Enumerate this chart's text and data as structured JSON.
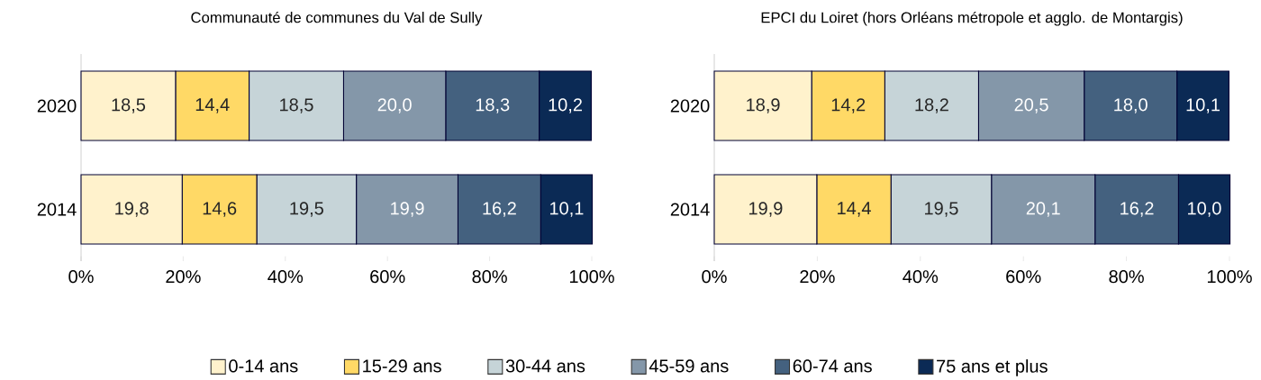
{
  "chart_data": [
    {
      "type": "bar",
      "orientation": "horizontal",
      "stacked": true,
      "title": "Communauté de communes du Val de Sully",
      "categories": [
        "2020",
        "2014"
      ],
      "xlim": [
        0,
        100
      ],
      "xticks": [
        {
          "value": 0,
          "label": "0%"
        },
        {
          "value": 20,
          "label": "20%"
        },
        {
          "value": 40,
          "label": "40%"
        },
        {
          "value": 60,
          "label": "60%"
        },
        {
          "value": 80,
          "label": "80%"
        },
        {
          "value": 100,
          "label": "100%"
        }
      ],
      "legend": "bottom",
      "series": [
        {
          "name": "0-14 ans",
          "color": "#fff2cc",
          "values": [
            18.5,
            19.8
          ],
          "value_labels": [
            "18,5",
            "19,8"
          ]
        },
        {
          "name": "15-29 ans",
          "color": "#ffd966",
          "values": [
            14.4,
            14.6
          ],
          "value_labels": [
            "14,4",
            "14,6"
          ]
        },
        {
          "name": "30-44 ans",
          "color": "#c6d4d8",
          "values": [
            18.5,
            19.5
          ],
          "value_labels": [
            "18,5",
            "19,5"
          ]
        },
        {
          "name": "45-59 ans",
          "color": "#8497a9",
          "values": [
            20.0,
            19.9
          ],
          "value_labels": [
            "20,0",
            "19,9"
          ]
        },
        {
          "name": "60-74 ans",
          "color": "#44617f",
          "values": [
            18.3,
            16.2
          ],
          "value_labels": [
            "18,3",
            "16,2"
          ]
        },
        {
          "name": "75 ans et plus",
          "color": "#0b2a55",
          "values": [
            10.2,
            10.1
          ],
          "value_labels": [
            "10,2",
            "10,1"
          ]
        }
      ]
    },
    {
      "type": "bar",
      "orientation": "horizontal",
      "stacked": true,
      "title": "EPCI du Loiret (hors Orléans métropole et agglo. de Montargis)",
      "categories": [
        "2020",
        "2014"
      ],
      "xlim": [
        0,
        100
      ],
      "xticks": [
        {
          "value": 0,
          "label": "0%"
        },
        {
          "value": 20,
          "label": "20%"
        },
        {
          "value": 40,
          "label": "40%"
        },
        {
          "value": 60,
          "label": "60%"
        },
        {
          "value": 80,
          "label": "80%"
        },
        {
          "value": 100,
          "label": "100%"
        }
      ],
      "series": [
        {
          "color": "#fff2cc",
          "values": [
            18.9,
            19.9
          ],
          "value_labels": [
            "18,9",
            "19,9"
          ]
        },
        {
          "color": "#ffd966",
          "values": [
            14.2,
            14.4
          ],
          "value_labels": [
            "14,2",
            "14,4"
          ]
        },
        {
          "color": "#c6d4d8",
          "values": [
            18.2,
            19.5
          ],
          "value_labels": [
            "18,2",
            "19,5"
          ]
        },
        {
          "color": "#8497a9",
          "values": [
            20.5,
            20.1
          ],
          "value_labels": [
            "20,5",
            "20,1"
          ]
        },
        {
          "color": "#44617f",
          "values": [
            18.0,
            16.2
          ],
          "value_labels": [
            "18,0",
            "16,2"
          ]
        },
        {
          "color": "#0b2a55",
          "values": [
            10.1,
            10.0
          ],
          "value_labels": [
            "10,1",
            "10,0"
          ]
        }
      ]
    }
  ]
}
